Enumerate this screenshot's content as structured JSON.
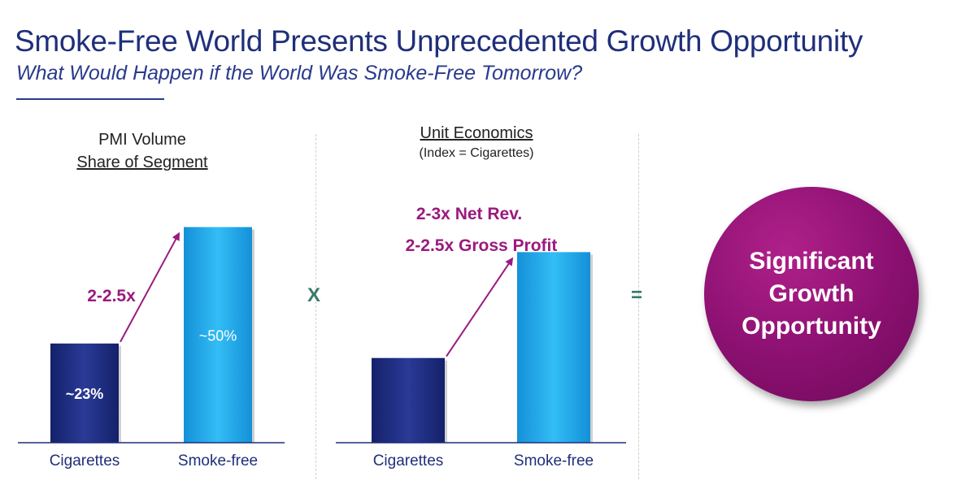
{
  "title": "Smoke-Free World Presents Unprecedented Growth Opportunity",
  "subtitle": "What Would Happen if the World Was Smoke-Free Tomorrow?",
  "operators": {
    "multiply": "X",
    "equals": "="
  },
  "result": {
    "lines": [
      "Significant",
      "Growth",
      "Opportunity"
    ]
  },
  "colors": {
    "navy": "#1b2a78",
    "cyan": "#1ea6e8",
    "magenta": "#9a1a7e"
  },
  "chart_data": [
    {
      "type": "bar",
      "title_line1": "PMI Volume",
      "title_line2": "Share of Segment",
      "categories": [
        "Cigarettes",
        "Smoke-free"
      ],
      "values": [
        23,
        50
      ],
      "data_labels": [
        "~23%",
        "~50%"
      ],
      "ylim": [
        0,
        55
      ],
      "annotation": "2-2.5x",
      "grid": false
    },
    {
      "type": "bar",
      "title": "Unit Economics",
      "subtitle": "(Index = Cigarettes)",
      "categories": [
        "Cigarettes",
        "Smoke-free"
      ],
      "values": [
        1,
        2.25
      ],
      "ylim": [
        0,
        2.8
      ],
      "annotations": [
        "2-3x Net Rev.",
        "2-2.5x Gross Profit"
      ],
      "grid": false
    }
  ]
}
